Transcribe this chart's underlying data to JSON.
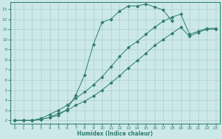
{
  "xlabel": "Humidex (Indice chaleur)",
  "bg_color": "#cce8e8",
  "grid_color": "#aacccc",
  "line_color": "#2e7d6e",
  "xlim": [
    -0.5,
    23.5
  ],
  "ylim": [
    1.7,
    13.7
  ],
  "xticks": [
    0,
    1,
    2,
    3,
    4,
    5,
    6,
    7,
    8,
    9,
    10,
    11,
    12,
    13,
    14,
    15,
    16,
    17,
    18,
    19,
    20,
    21,
    22,
    23
  ],
  "yticks": [
    2,
    3,
    4,
    5,
    6,
    7,
    8,
    9,
    10,
    11,
    12,
    13
  ],
  "line1_x": [
    0,
    1,
    2,
    3,
    4,
    5,
    6,
    7,
    8,
    9,
    10,
    11,
    12,
    13,
    14,
    15,
    16,
    17,
    18
  ],
  "line1_y": [
    2.0,
    2.0,
    2.0,
    2.1,
    2.3,
    2.5,
    3.1,
    4.5,
    6.5,
    9.5,
    11.7,
    12.0,
    12.8,
    13.3,
    13.3,
    13.5,
    13.2,
    12.9,
    11.8
  ],
  "line2_x": [
    0,
    1,
    2,
    3,
    4,
    5,
    6,
    7,
    8,
    9,
    10,
    11,
    12,
    13,
    14,
    15,
    16,
    17,
    18,
    19,
    20,
    21,
    22,
    23
  ],
  "line2_y": [
    2.0,
    2.0,
    2.0,
    2.2,
    2.6,
    3.0,
    3.5,
    4.2,
    4.8,
    5.5,
    6.3,
    7.3,
    8.3,
    9.2,
    9.8,
    10.5,
    11.2,
    11.8,
    12.2,
    12.5,
    10.5,
    10.8,
    11.1,
    11.1
  ],
  "line3_x": [
    0,
    1,
    2,
    3,
    4,
    5,
    6,
    7,
    8,
    9,
    10,
    11,
    12,
    13,
    14,
    15,
    16,
    17,
    18,
    19,
    20,
    21,
    22,
    23
  ],
  "line3_y": [
    2.0,
    2.0,
    2.0,
    2.1,
    2.3,
    2.7,
    3.0,
    3.5,
    3.9,
    4.4,
    5.0,
    5.7,
    6.4,
    7.2,
    7.9,
    8.6,
    9.4,
    10.0,
    10.6,
    11.2,
    10.3,
    10.7,
    11.0,
    11.0
  ]
}
